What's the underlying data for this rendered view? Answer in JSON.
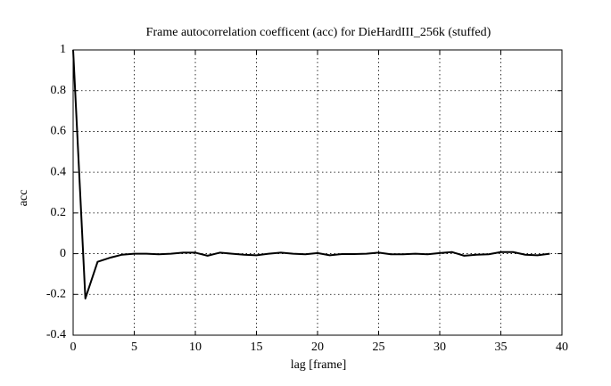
{
  "chart_data": {
    "type": "line",
    "title": "Frame autocorrelation coefficent (acc) for DieHardIII_256k (stuffed)",
    "x_label": "lag [frame]",
    "y_label": "acc",
    "x": [
      0,
      1,
      2,
      3,
      4,
      5,
      6,
      7,
      8,
      9,
      10,
      11,
      12,
      13,
      14,
      15,
      16,
      17,
      18,
      19,
      20,
      21,
      22,
      23,
      24,
      25,
      26,
      27,
      28,
      29,
      30,
      31,
      32,
      33,
      34,
      35,
      36,
      37,
      38,
      39
    ],
    "series": [
      {
        "name": "acc",
        "color": "#000000",
        "values": [
          1,
          -0.22,
          -0.04,
          -0.02,
          -0.005,
          0,
          0,
          -0.003,
          0,
          0.005,
          0.005,
          -0.01,
          0.005,
          0,
          -0.005,
          -0.008,
          0,
          0.005,
          0,
          -0.003,
          0.003,
          -0.008,
          -0.002,
          -0.002,
          0,
          0.005,
          -0.003,
          -0.003,
          0,
          -0.003,
          0.003,
          0.008,
          -0.01,
          -0.005,
          -0.003,
          0.008,
          0.008,
          -0.005,
          -0.008,
          0
        ]
      }
    ],
    "xlim": [
      0,
      40
    ],
    "xticks": [
      0,
      5,
      10,
      15,
      20,
      25,
      30,
      35,
      40
    ],
    "ylim": [
      -0.4,
      1
    ],
    "yticks": [
      -0.4,
      -0.2,
      0,
      0.2,
      0.4,
      0.6,
      0.8,
      1
    ],
    "grid": true
  }
}
